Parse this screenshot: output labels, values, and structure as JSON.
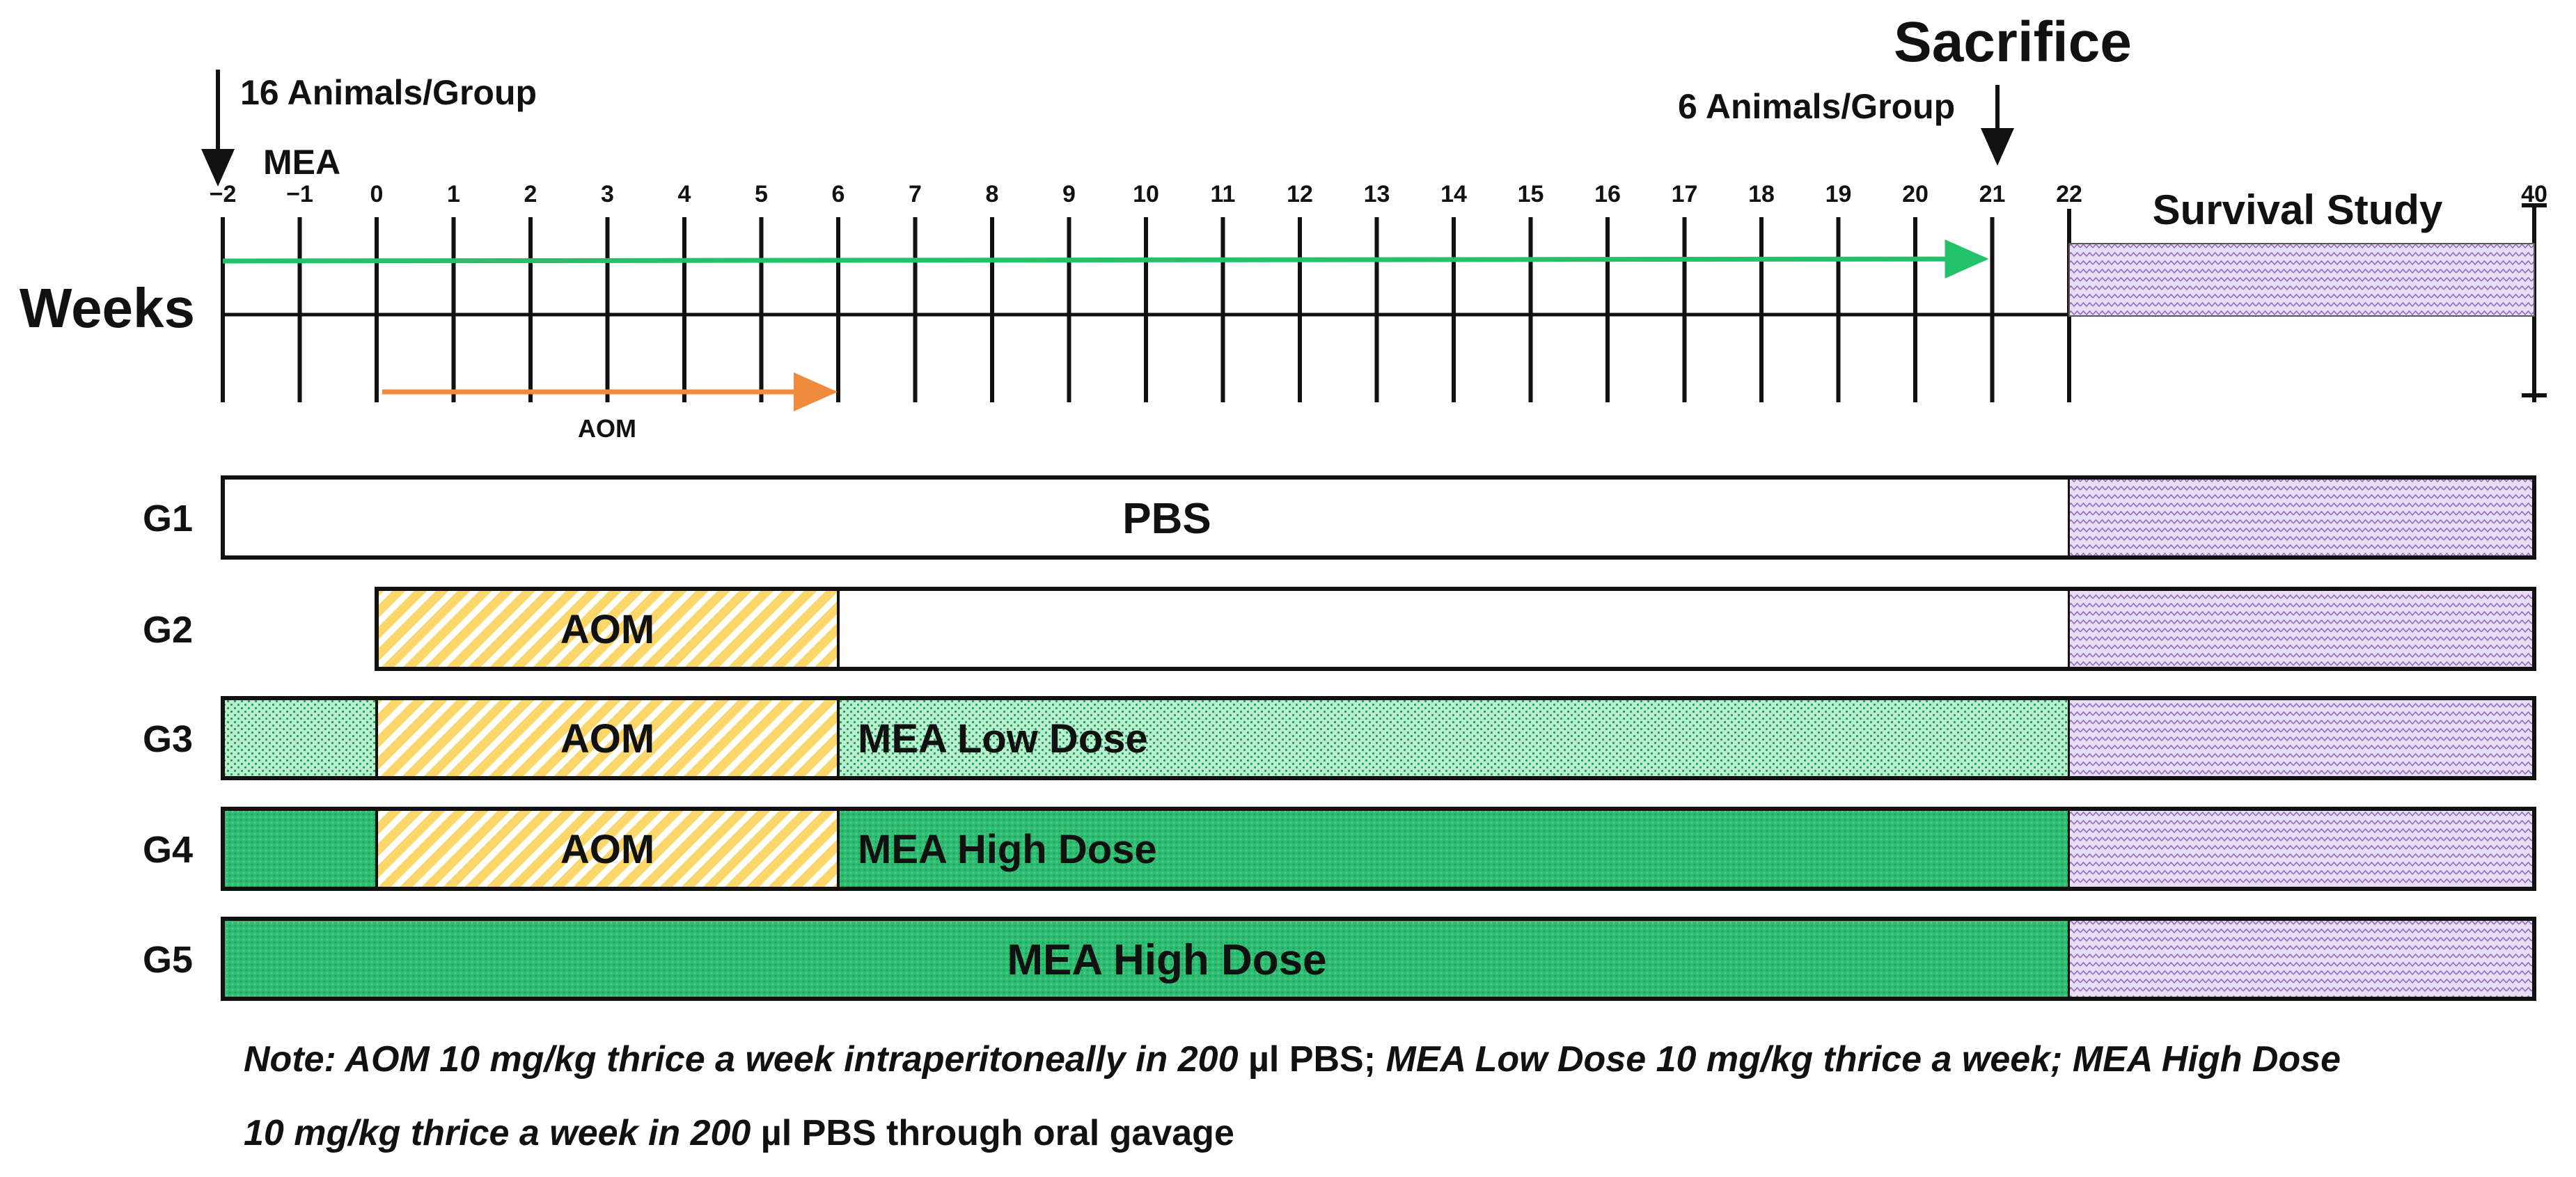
{
  "weeks_label": "Weeks",
  "ticks": [
    "−2",
    "−1",
    "0",
    "1",
    "2",
    "3",
    "4",
    "5",
    "6",
    "7",
    "8",
    "9",
    "10",
    "11",
    "12",
    "13",
    "14",
    "15",
    "16",
    "17",
    "18",
    "19",
    "20",
    "21",
    "22",
    "40"
  ],
  "annotations": {
    "start_group": "16 Animals/Group",
    "mea_label": "MEA",
    "sacrifice_title": "Sacrifice",
    "sacrifice_group": "6 Animals/Group",
    "survival_study": "Survival Study",
    "aom_label": "AOM"
  },
  "timeline": {
    "green_arrow_weeks": [
      -2,
      21
    ],
    "orange_arrow_weeks": [
      0,
      6
    ],
    "survival_weeks": [
      22,
      40
    ]
  },
  "groups": [
    {
      "name": "G1",
      "segments": [
        {
          "from": -2,
          "to": 22,
          "pattern": "white",
          "label": ""
        },
        {
          "from": 22,
          "to": 40,
          "pattern": "survival",
          "label": ""
        }
      ],
      "center_label": "PBS"
    },
    {
      "name": "G2",
      "segments": [
        {
          "from": 0,
          "to": 6,
          "pattern": "aom",
          "label": "AOM"
        },
        {
          "from": 6,
          "to": 22,
          "pattern": "white",
          "label": ""
        },
        {
          "from": 22,
          "to": 40,
          "pattern": "survival",
          "label": ""
        }
      ],
      "center_label": ""
    },
    {
      "name": "G3",
      "segments": [
        {
          "from": -2,
          "to": 0,
          "pattern": "low",
          "label": ""
        },
        {
          "from": 0,
          "to": 6,
          "pattern": "aom",
          "label": "AOM"
        },
        {
          "from": 6,
          "to": 22,
          "pattern": "low",
          "label": "MEA Low Dose"
        },
        {
          "from": 22,
          "to": 40,
          "pattern": "survival",
          "label": ""
        }
      ],
      "center_label": ""
    },
    {
      "name": "G4",
      "segments": [
        {
          "from": -2,
          "to": 0,
          "pattern": "high",
          "label": ""
        },
        {
          "from": 0,
          "to": 6,
          "pattern": "aom",
          "label": "AOM"
        },
        {
          "from": 6,
          "to": 22,
          "pattern": "high",
          "label": "MEA High Dose"
        },
        {
          "from": 22,
          "to": 40,
          "pattern": "survival",
          "label": ""
        }
      ],
      "center_label": ""
    },
    {
      "name": "G5",
      "segments": [
        {
          "from": -2,
          "to": 22,
          "pattern": "high",
          "label": ""
        },
        {
          "from": 22,
          "to": 40,
          "pattern": "survival",
          "label": ""
        }
      ],
      "center_label": "MEA High Dose"
    }
  ],
  "note": {
    "line1_a": "Note: AOM 10 mg/kg thrice a week intraperitoneally in 200",
    "line1_b": " µl PBS; ",
    "line1_c": "MEA Low Dose 10 mg/kg thrice a week; MEA High Dose",
    "line2_a": "10 mg/kg thrice a week in 200",
    "line2_b": " µl PBS through oral gavage"
  },
  "colors": {
    "green_arrow": "#22c16a",
    "orange_arrow": "#f08a3c",
    "aom_fill": "#f6c342",
    "low_dose_fill": "#9fe6bd",
    "high_dose_fill": "#2fbd73",
    "survival_fill": "#e4d2f2"
  }
}
